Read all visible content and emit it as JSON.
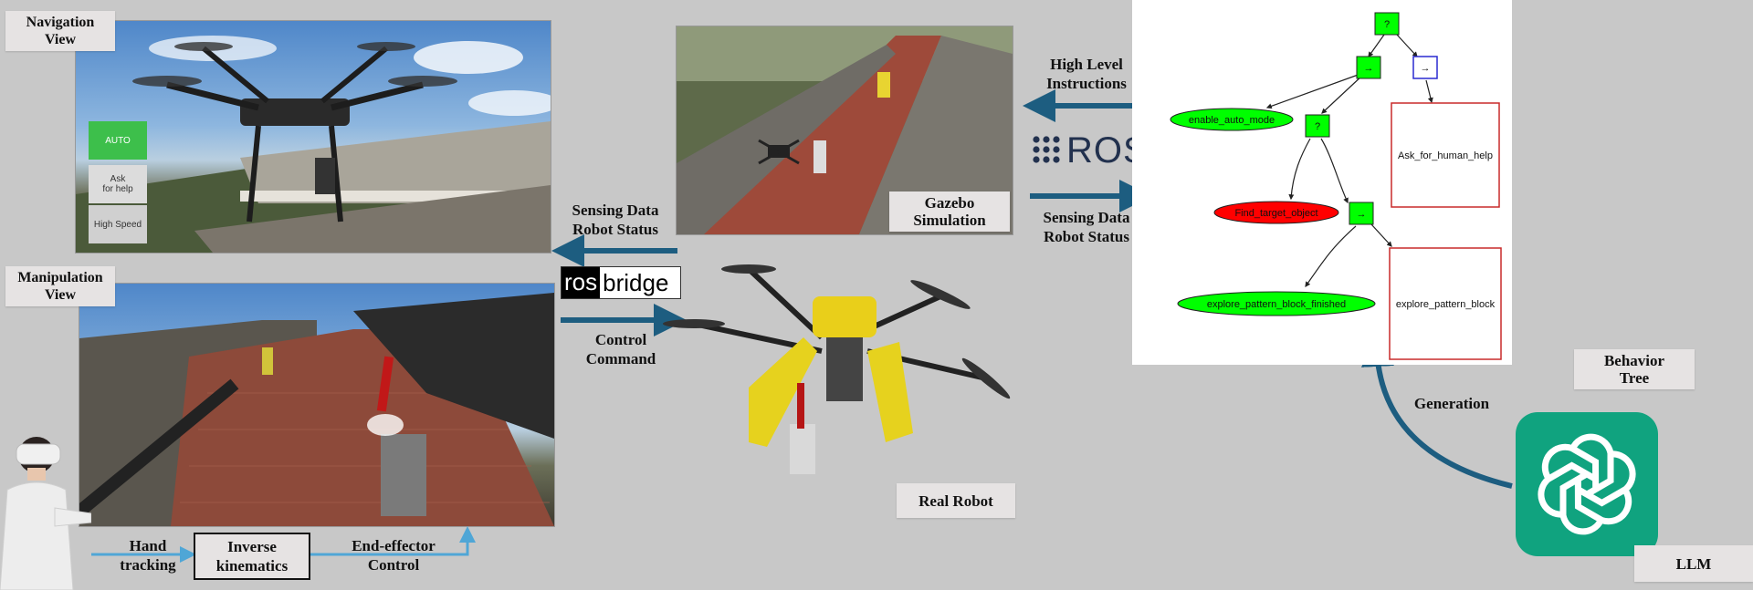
{
  "views": {
    "navigation": [
      "Navigation",
      "View"
    ],
    "manipulation": [
      "Manipulation",
      "View"
    ]
  },
  "nav_buttons": {
    "auto": "AUTO",
    "ask": [
      "Ask",
      "for help"
    ],
    "speed": "High Speed"
  },
  "labels": {
    "sensing_left": [
      "Sensing Data",
      "Robot Status"
    ],
    "control": [
      "Control",
      "Command"
    ],
    "gazebo": [
      "Gazebo",
      "Simulation"
    ],
    "high_level": [
      "High Level",
      "Instructions"
    ],
    "sensing_right": [
      "Sensing Data",
      "Robot Status"
    ],
    "real_robot": "Real Robot",
    "behavior_tree": [
      "Behavior",
      "Tree"
    ],
    "generation": "Generation",
    "llm": "LLM",
    "hand_tracking": [
      "Hand",
      "tracking"
    ],
    "inverse_kinematics": [
      "Inverse",
      "kinematics"
    ],
    "end_effector": [
      "End-effector",
      "Control"
    ]
  },
  "logos": {
    "ros": "ROS",
    "rosbridge_a": "ros",
    "rosbridge_b": "bridge"
  },
  "tree": {
    "root": "?",
    "seq1": "→",
    "seq2": "→",
    "fallback2": "?",
    "seq3": "→",
    "enable_auto_mode": "enable_auto_mode",
    "find_target_object": "Find_target_object",
    "explore_finished": "explore_pattern_block_finished",
    "ask_for_help": "Ask_for_human_help",
    "explore_block": "explore_pattern_block"
  },
  "colors": {
    "arrow": "#1d5d80",
    "success_green": "#00ff00",
    "failure_red": "#ff0000",
    "llm_green": "#10a37f"
  }
}
